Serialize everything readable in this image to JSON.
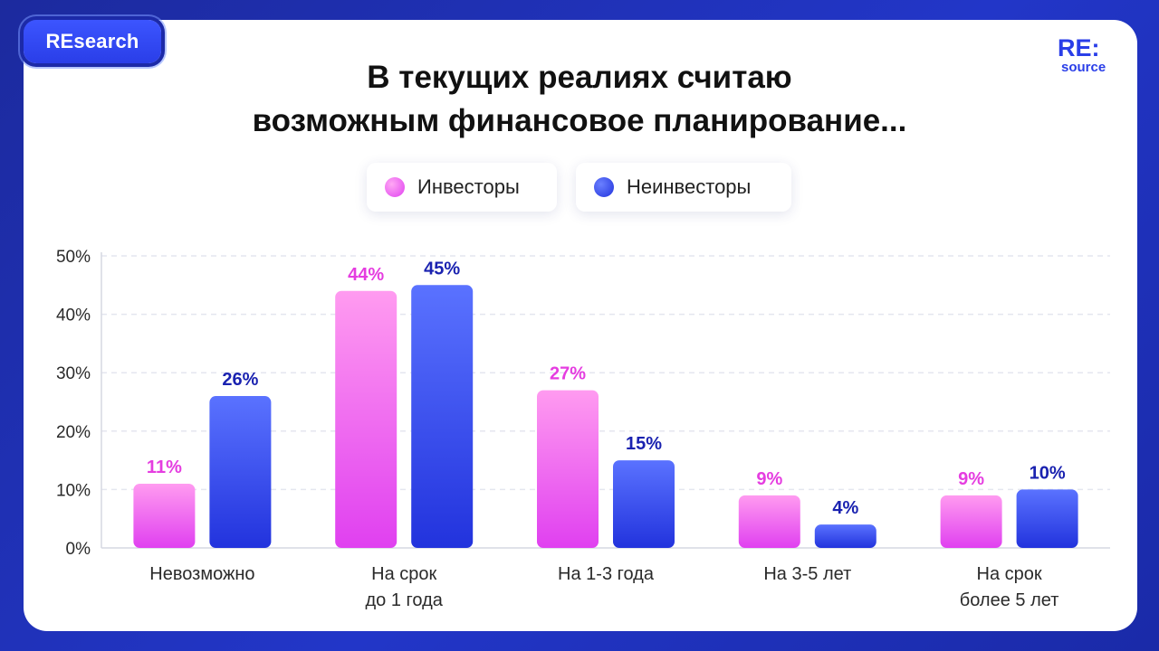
{
  "badge": "REsearch",
  "logo": {
    "top": "RE:",
    "bottom": "source"
  },
  "chart_data": {
    "type": "bar",
    "title_lines": [
      "В текущих реалиях считаю",
      "возможным финансовое планирование..."
    ],
    "categories": [
      [
        "Невозможно"
      ],
      [
        "На срок",
        "до 1 года"
      ],
      [
        "На 1-3 года"
      ],
      [
        "На 3-5 лет"
      ],
      [
        "На срок",
        "более 5 лет"
      ]
    ],
    "series": [
      {
        "name": "Инвесторы",
        "values": [
          11,
          44,
          27,
          9,
          9
        ],
        "labels": [
          "11%",
          "44%",
          "27%",
          "9%",
          "9%"
        ],
        "color": "#e040f0",
        "color_light": "#ff9bf0",
        "label_color": "#e53de0"
      },
      {
        "name": "Неинвесторы",
        "values": [
          26,
          45,
          15,
          4,
          10
        ],
        "labels": [
          "26%",
          "45%",
          "15%",
          "4%",
          "10%"
        ],
        "color": "#2233dd",
        "color_light": "#5a72ff",
        "label_color": "#1a22b0"
      }
    ],
    "ylim": [
      0,
      50
    ],
    "yticks": [
      "0%",
      "10%",
      "20%",
      "30%",
      "40%",
      "50%"
    ],
    "grid": true,
    "legend_position": "top-center"
  }
}
